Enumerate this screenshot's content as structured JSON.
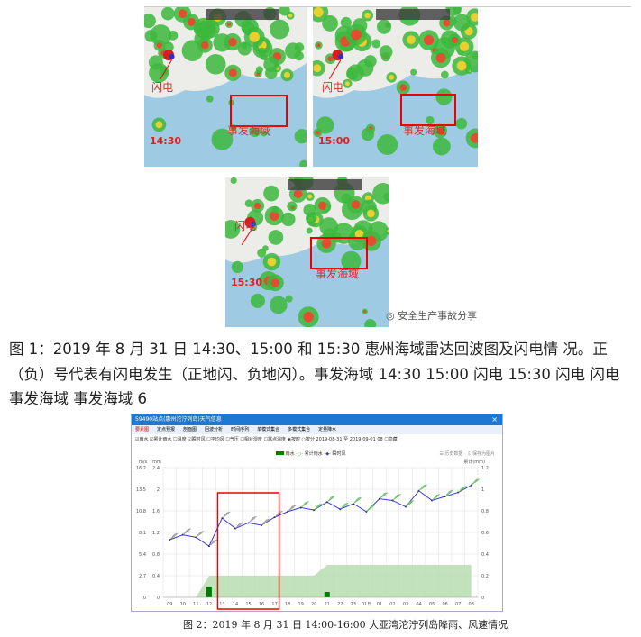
{
  "figure1": {
    "maps": [
      {
        "time": "14:30",
        "lightning_label": "闪电",
        "area_label": "事发海域"
      },
      {
        "time": "15:00",
        "lightning_label": "闪电",
        "area_label": "事发海域"
      },
      {
        "time": "15:30",
        "lightning_label": "闪电",
        "area_label": "事发海域"
      }
    ],
    "watermark": "安全生产事故分享"
  },
  "paragraph": "图 1：2019 年 8 月 31 日 14:30、15:00 和 15:30 惠州海域雷达回波图及闪电情 况。正（负）号代表有闪电发生（正地闪、负地闪）。事发海域 14:30 15:00 闪电 15:30 闪电 闪电 事发海域 事发海域 6",
  "weather_window": {
    "title": "59490站点(惠州沱泞列岛)天气信息",
    "close": "×",
    "tabs": [
      "要素图",
      "定点预报",
      "剖面图",
      "回波分析",
      "时间序列",
      "单模式集合",
      "多模式集合",
      "定量降水"
    ],
    "options": "☑雨水 ☑累计雨水 ☐温度 ☑瞬时风 ☐平均风 ☐气压 ☐相对湿度 ☐露点温度 ◉按时 ○按分 2019-08-31 至 2019-09-01 08 ☐隐藏",
    "legend": [
      "雨水",
      "累计雨水",
      "瞬时风"
    ],
    "tools": [
      "历史数据",
      "保存为图片"
    ]
  },
  "chart_data": {
    "type": "line",
    "categories": [
      "09",
      "10",
      "11",
      "12",
      "13",
      "14",
      "15",
      "16",
      "17",
      "18",
      "19",
      "20",
      "21",
      "22",
      "23",
      "01日",
      "01",
      "02",
      "03",
      "04",
      "05",
      "06",
      "07",
      "08"
    ],
    "left_axis_1": {
      "label": "m/s",
      "ticks": [
        "0",
        "2.7",
        "5.4",
        "8.1",
        "10.8",
        "13.5",
        "16.2"
      ],
      "range": [
        0,
        16.2
      ]
    },
    "left_axis_2": {
      "label": "mm",
      "ticks": [
        "0",
        "0.4",
        "0.8",
        "1.2",
        "1.6",
        "2",
        "2.4"
      ],
      "range": [
        0,
        2.4
      ]
    },
    "right_axis": {
      "label": "累计(mm)",
      "ticks": [
        "0",
        "0.2",
        "0.4",
        "0.6",
        "0.8",
        "1",
        "1.2"
      ],
      "range": [
        0,
        1.2
      ]
    },
    "grid": true,
    "series": [
      {
        "name": "瞬时风",
        "type": "line",
        "color": "#3a3ae0",
        "values": [
          7.2,
          7.8,
          7.5,
          6.4,
          9.9,
          8.6,
          9.3,
          9.0,
          10.0,
          10.7,
          11.2,
          10.9,
          11.9,
          11.0,
          11.7,
          10.7,
          12.3,
          12.1,
          11.3,
          13.3,
          12.1,
          12.6,
          13.1,
          14.0
        ]
      },
      {
        "name": "雨水",
        "type": "bar",
        "color": "#007a00",
        "values": [
          0,
          0,
          0,
          0.2,
          0,
          0,
          0,
          0,
          0,
          0,
          0,
          0,
          0.1,
          0,
          0,
          0,
          0,
          0,
          0,
          0,
          0,
          0,
          0,
          0
        ]
      },
      {
        "name": "累计雨水",
        "type": "area",
        "color": "#b7ddb0",
        "values": [
          0,
          0,
          0,
          0.2,
          0.2,
          0.2,
          0.2,
          0.2,
          0.2,
          0.2,
          0.2,
          0.2,
          0.3,
          0.3,
          0.3,
          0.3,
          0.3,
          0.3,
          0.3,
          0.3,
          0.3,
          0.3,
          0.3,
          0.3
        ]
      }
    ],
    "highlight_range": [
      "13",
      "17"
    ]
  },
  "caption": "图 2：2019 年 8 月 31 日 14:00-16:00 大亚湾沱泞列岛降雨、风速情况"
}
